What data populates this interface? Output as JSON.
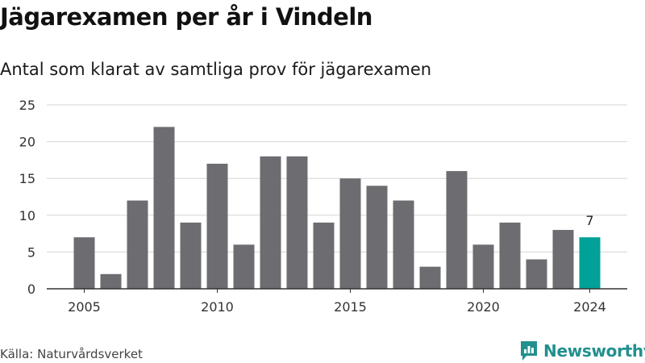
{
  "title": "Jägarexamen per år i Vindeln",
  "subtitle": "Antal som klarat av samtliga prov för jägarexamen",
  "source": "Källa: Naturvårdsverket",
  "brand": {
    "name": "Newsworthy",
    "icon": "newsworthy-logo-icon"
  },
  "colors": {
    "bar": "#6d6c70",
    "highlight": "#00a199",
    "grid": "#d6d6d6",
    "axis": "#333333",
    "brand": "#21908e"
  },
  "chart_data": {
    "type": "bar",
    "title": "Jägarexamen per år i Vindeln",
    "subtitle": "Antal som klarat av samtliga prov för jägarexamen",
    "xlabel": "",
    "ylabel": "",
    "categories": [
      2005,
      2006,
      2007,
      2008,
      2009,
      2010,
      2011,
      2012,
      2013,
      2014,
      2015,
      2016,
      2017,
      2018,
      2019,
      2020,
      2021,
      2022,
      2023,
      2024
    ],
    "values": [
      7,
      2,
      12,
      22,
      9,
      17,
      6,
      18,
      18,
      9,
      15,
      14,
      12,
      3,
      16,
      6,
      9,
      4,
      8,
      7
    ],
    "highlight": {
      "category": 2024,
      "label": "7"
    },
    "xticks": [
      2005,
      2010,
      2015,
      2020,
      2024
    ],
    "ylim": [
      0,
      25
    ],
    "yticks": [
      0,
      5,
      10,
      15,
      20,
      25
    ],
    "grid": true,
    "legend": "none"
  }
}
